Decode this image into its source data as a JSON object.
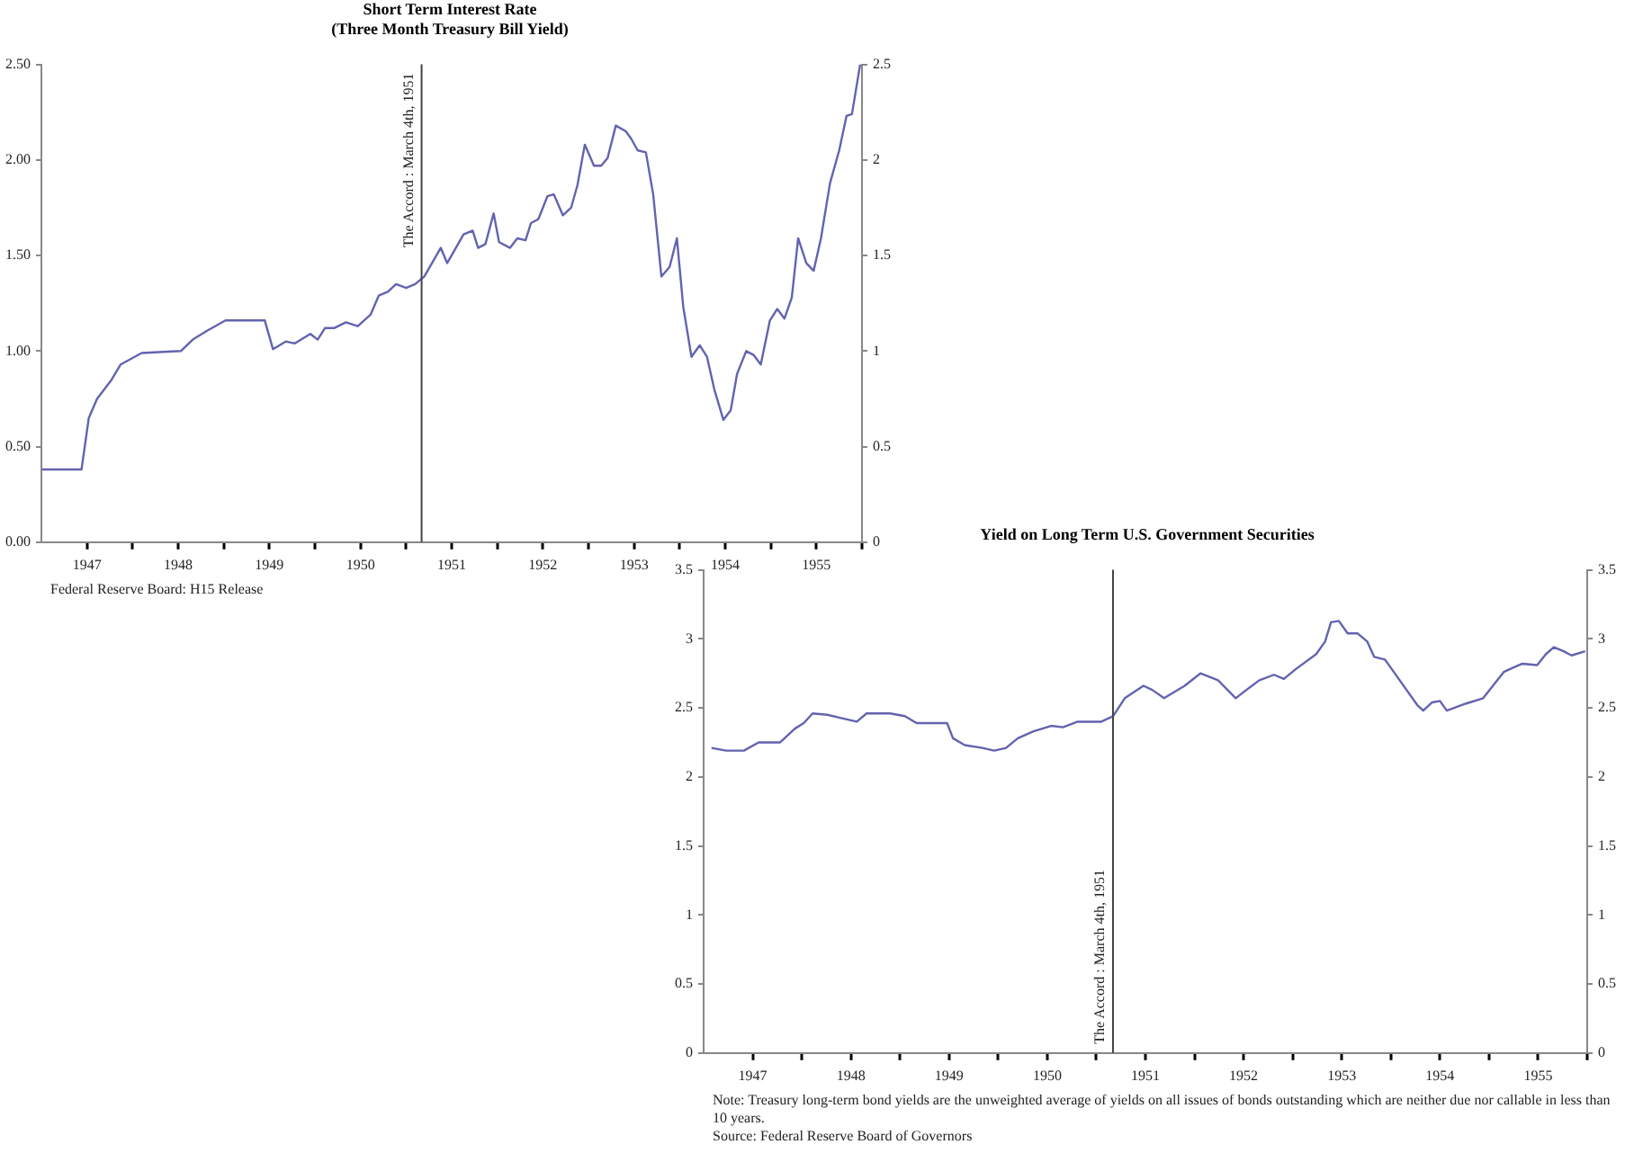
{
  "chart_data": [
    {
      "type": "line",
      "title": "Short Term Interest Rate",
      "subtitle": "(Three Month Treasury Bill Yield)",
      "marker": "none",
      "grid": false,
      "x": [
        1947.01,
        1947.44,
        1947.52,
        1947.61,
        1947.77,
        1947.87,
        1948.1,
        1948.53,
        1948.66,
        1948.83,
        1949.02,
        1949.45,
        1949.54,
        1949.68,
        1949.78,
        1949.95,
        1950.03,
        1950.11,
        1950.21,
        1950.34,
        1950.47,
        1950.61,
        1950.7,
        1950.8,
        1950.89,
        1951.0,
        1951.1,
        1951.2,
        1951.38,
        1951.45,
        1951.63,
        1951.73,
        1951.79,
        1951.87,
        1951.96,
        1952.02,
        1952.14,
        1952.22,
        1952.31,
        1952.37,
        1952.45,
        1952.55,
        1952.62,
        1952.72,
        1952.81,
        1952.88,
        1952.96,
        1953.06,
        1953.14,
        1953.21,
        1953.3,
        1953.41,
        1953.47,
        1953.54,
        1953.63,
        1953.71,
        1953.8,
        1953.89,
        1953.97,
        1954.04,
        1954.13,
        1954.22,
        1954.3,
        1954.38,
        1954.48,
        1954.56,
        1954.63,
        1954.73,
        1954.81,
        1954.89,
        1954.99,
        1955.07,
        1955.15,
        1955.23,
        1955.3,
        1955.39,
        1955.47,
        1955.55,
        1955.65,
        1955.75,
        1955.83,
        1955.89,
        1955.98
      ],
      "series": [
        {
          "color": "#6363b0",
          "values": [
            0.38,
            0.38,
            0.65,
            0.75,
            0.85,
            0.93,
            0.99,
            1.0,
            1.06,
            1.11,
            1.16,
            1.16,
            1.01,
            1.05,
            1.04,
            1.09,
            1.06,
            1.12,
            1.12,
            1.15,
            1.13,
            1.19,
            1.29,
            1.31,
            1.35,
            1.33,
            1.35,
            1.39,
            1.54,
            1.46,
            1.61,
            1.63,
            1.54,
            1.56,
            1.72,
            1.57,
            1.54,
            1.59,
            1.58,
            1.67,
            1.69,
            1.81,
            1.82,
            1.71,
            1.75,
            1.87,
            2.08,
            1.97,
            1.97,
            2.01,
            2.18,
            2.15,
            2.11,
            2.05,
            2.04,
            1.82,
            1.39,
            1.44,
            1.59,
            1.23,
            0.97,
            1.03,
            0.97,
            0.8,
            0.64,
            0.69,
            0.88,
            1.0,
            0.98,
            0.93,
            1.16,
            1.22,
            1.17,
            1.28,
            1.59,
            1.46,
            1.42,
            1.59,
            1.88,
            2.05,
            2.23,
            2.24,
            2.5
          ]
        }
      ],
      "xlim": [
        1947,
        1956
      ],
      "xticks": [
        {
          "value": 1947.5,
          "label": "1947"
        },
        {
          "value": 1948,
          "label": null
        },
        {
          "value": 1948.5,
          "label": "1948"
        },
        {
          "value": 1949,
          "label": null
        },
        {
          "value": 1949.5,
          "label": "1949"
        },
        {
          "value": 1950,
          "label": null
        },
        {
          "value": 1950.5,
          "label": "1950"
        },
        {
          "value": 1951,
          "label": null
        },
        {
          "value": 1951.5,
          "label": "1951"
        },
        {
          "value": 1952,
          "label": null
        },
        {
          "value": 1952.5,
          "label": "1952"
        },
        {
          "value": 1953,
          "label": null
        },
        {
          "value": 1953.5,
          "label": "1953"
        },
        {
          "value": 1954,
          "label": null
        },
        {
          "value": 1954.5,
          "label": "1954"
        },
        {
          "value": 1955,
          "label": null
        },
        {
          "value": 1955.5,
          "label": "1955"
        },
        {
          "value": 1956,
          "label": null
        }
      ],
      "ylim": [
        0,
        2.5
      ],
      "yticks": [
        {
          "value": 0,
          "label": "0.00"
        },
        {
          "value": 0.5,
          "label": "0.50"
        },
        {
          "value": 1,
          "label": "1.00"
        },
        {
          "value": 1.5,
          "label": "1.50"
        },
        {
          "value": 2,
          "label": "2.00"
        },
        {
          "value": 2.5,
          "label": "2.50"
        }
      ],
      "y2lim": [
        0,
        2.5
      ],
      "y2ticks": [
        0,
        0.5,
        1,
        1.5,
        2,
        2.5
      ],
      "ref_lines": [
        {
          "axis": "x",
          "value": 1951.17,
          "label": "The Accord : March 4th, 1951"
        }
      ],
      "annotations": [
        "Federal Reserve Board:  H15 Release"
      ]
    },
    {
      "type": "line",
      "title": "Yield on Long Term U.S. Government Securities",
      "marker": "none",
      "grid": false,
      "x": [
        1947.08,
        1947.23,
        1947.41,
        1947.56,
        1947.78,
        1947.93,
        1948.02,
        1948.11,
        1948.26,
        1948.38,
        1948.56,
        1948.66,
        1948.9,
        1949.05,
        1949.17,
        1949.48,
        1949.54,
        1949.66,
        1949.84,
        1949.96,
        1950.08,
        1950.2,
        1950.36,
        1950.54,
        1950.66,
        1950.81,
        1951.05,
        1951.17,
        1951.29,
        1951.48,
        1951.57,
        1951.69,
        1951.9,
        1952.06,
        1952.24,
        1952.42,
        1952.51,
        1952.66,
        1952.81,
        1952.91,
        1953.03,
        1953.24,
        1953.33,
        1953.39,
        1953.47,
        1953.56,
        1953.66,
        1953.76,
        1953.83,
        1953.94,
        1954.03,
        1954.15,
        1954.27,
        1954.33,
        1954.42,
        1954.5,
        1954.57,
        1954.76,
        1954.94,
        1955.15,
        1955.24,
        1955.34,
        1955.49,
        1955.58,
        1955.66,
        1955.76,
        1955.84,
        1955.98
      ],
      "series": [
        {
          "color": "#6363b0",
          "values": [
            2.21,
            2.19,
            2.19,
            2.25,
            2.25,
            2.35,
            2.39,
            2.46,
            2.45,
            2.43,
            2.4,
            2.46,
            2.46,
            2.44,
            2.39,
            2.39,
            2.28,
            2.23,
            2.21,
            2.19,
            2.21,
            2.28,
            2.33,
            2.37,
            2.36,
            2.4,
            2.4,
            2.44,
            2.57,
            2.66,
            2.63,
            2.57,
            2.66,
            2.75,
            2.7,
            2.57,
            2.62,
            2.7,
            2.74,
            2.71,
            2.78,
            2.89,
            2.98,
            3.12,
            3.13,
            3.04,
            3.04,
            2.98,
            2.87,
            2.85,
            2.76,
            2.64,
            2.52,
            2.48,
            2.54,
            2.55,
            2.48,
            2.53,
            2.57,
            2.76,
            2.79,
            2.82,
            2.81,
            2.89,
            2.94,
            2.91,
            2.88,
            2.91
          ]
        }
      ],
      "xlim": [
        1947,
        1956
      ],
      "xticks": [
        {
          "value": 1947.5,
          "label": "1947"
        },
        {
          "value": 1948,
          "label": null
        },
        {
          "value": 1948.5,
          "label": "1948"
        },
        {
          "value": 1949,
          "label": null
        },
        {
          "value": 1949.5,
          "label": "1949"
        },
        {
          "value": 1950,
          "label": null
        },
        {
          "value": 1950.5,
          "label": "1950"
        },
        {
          "value": 1951,
          "label": null
        },
        {
          "value": 1951.5,
          "label": "1951"
        },
        {
          "value": 1952,
          "label": null
        },
        {
          "value": 1952.5,
          "label": "1952"
        },
        {
          "value": 1953,
          "label": null
        },
        {
          "value": 1953.5,
          "label": "1953"
        },
        {
          "value": 1954,
          "label": null
        },
        {
          "value": 1954.5,
          "label": "1954"
        },
        {
          "value": 1955,
          "label": null
        },
        {
          "value": 1955.5,
          "label": "1955"
        },
        {
          "value": 1956,
          "label": null
        }
      ],
      "ylim": [
        0,
        3.5
      ],
      "yticks": [
        0,
        0.5,
        1,
        1.5,
        2,
        2.5,
        3,
        3.5
      ],
      "y2lim": [
        0,
        3.5
      ],
      "y2ticks": [
        0,
        0.5,
        1,
        1.5,
        2,
        2.5,
        3,
        3.5
      ],
      "ref_lines": [
        {
          "axis": "x",
          "value": 1951.17,
          "label": "The Accord : March 4th, 1951"
        }
      ],
      "annotations": [
        "Note: Treasury long-term bond yields are the unweighted average of yields on all issues of bonds outstanding which are neither due nor callable in less than 10 years.",
        "Source:  Federal Reserve Board of Governors"
      ]
    }
  ]
}
